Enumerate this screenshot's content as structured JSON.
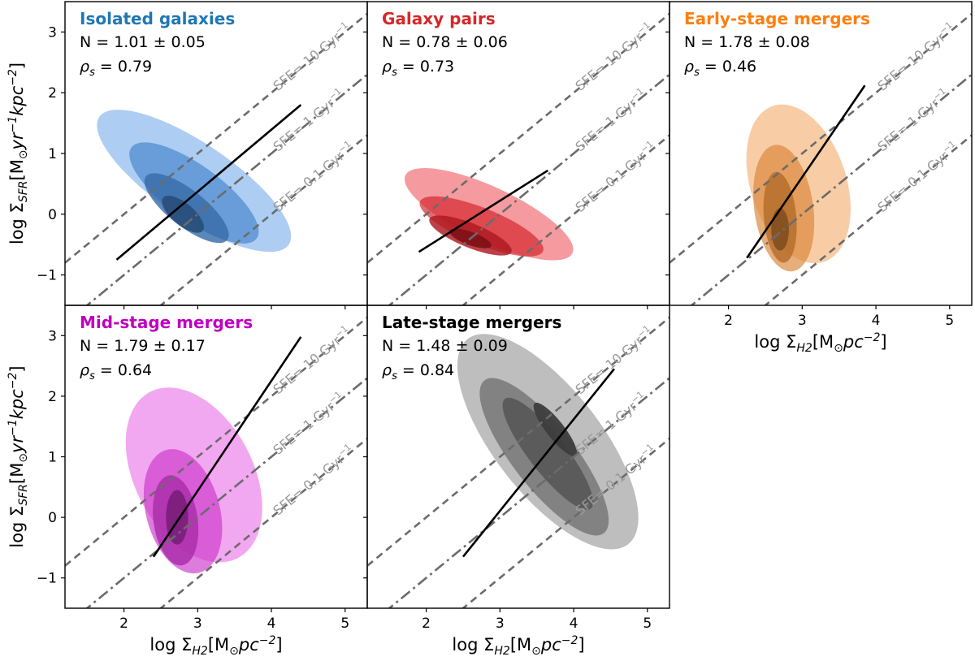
{
  "figure": {
    "xlabel_main": "log Σ",
    "xlabel_sub": "H2",
    "xlabel_unit": "[M",
    "xlabel_unit_sub": "⊙",
    "xlabel_unit_tail": "pc",
    "xlabel_unit_sup": "−2",
    "xlabel_close": "]",
    "ylabel_main": "log Σ",
    "ylabel_sub": "SFR",
    "ylabel_unit": "[M",
    "ylabel_unit_sub": "⊙",
    "ylabel_yr": "yr",
    "ylabel_yr_sup": "−1",
    "ylabel_kpc": "kpc",
    "ylabel_kpc_sup": "−2",
    "ylabel_close": "]",
    "sfe_labels": [
      "SFE= 10 Gyr",
      "SFE= 1 Gyr",
      "SFE= 0.1 Gyr"
    ],
    "sfe_sup": "−1",
    "stats_n_prefix": "N = ",
    "stats_rho_symbol": "ρ",
    "stats_rho_sub": "s",
    "stats_rho_eq": " = "
  },
  "chart_data": [
    {
      "type": "contour",
      "title": "Isolated galaxies",
      "title_color": "#1f77b4",
      "fill_color": "#4a90e2",
      "n_label": "1.01 ± 0.05",
      "rho_label": "0.79",
      "xlim": [
        1.2,
        5.3
      ],
      "ylim": [
        -1.5,
        3.5
      ],
      "xticks": [
        2,
        3,
        4,
        5
      ],
      "yticks": [
        -1,
        0,
        1,
        2,
        3
      ],
      "fit_line": [
        [
          1.9,
          -0.75
        ],
        [
          4.4,
          1.8
        ]
      ],
      "sfe_reference_lines": {
        "sfe_10": [
          [
            1.2,
            -0.8
          ],
          [
            5.3,
            3.3
          ]
        ],
        "sfe_1": [
          [
            1.2,
            -1.8
          ],
          [
            5.3,
            2.3
          ]
        ],
        "sfe_0_1": [
          [
            1.2,
            -2.8
          ],
          [
            5.3,
            1.3
          ]
        ]
      }
    },
    {
      "type": "contour",
      "title": "Galaxy pairs",
      "title_color": "#d62728",
      "fill_color": "#e8212a",
      "n_label": "0.78 ± 0.06",
      "rho_label": "0.73",
      "xlim": [
        1.2,
        5.3
      ],
      "ylim": [
        -1.5,
        3.5
      ],
      "xticks": [
        2,
        3,
        4,
        5
      ],
      "yticks": [
        -1,
        0,
        1,
        2,
        3
      ],
      "fit_line": [
        [
          1.9,
          -0.62
        ],
        [
          3.65,
          0.72
        ]
      ],
      "sfe_reference_lines": {
        "sfe_10": [
          [
            1.2,
            -0.8
          ],
          [
            5.3,
            3.3
          ]
        ],
        "sfe_1": [
          [
            1.2,
            -1.8
          ],
          [
            5.3,
            2.3
          ]
        ],
        "sfe_0_1": [
          [
            1.2,
            -2.8
          ],
          [
            5.3,
            1.3
          ]
        ]
      }
    },
    {
      "type": "contour",
      "title": "Early-stage mergers",
      "title_color": "#ff7f0e",
      "fill_color": "#f0913a",
      "n_label": "1.78 ± 0.08",
      "rho_label": "0.46",
      "xlim": [
        1.2,
        5.3
      ],
      "ylim": [
        -1.5,
        3.5
      ],
      "xticks": [
        2,
        3,
        4,
        5
      ],
      "yticks": [
        -1,
        0,
        1,
        2,
        3
      ],
      "fit_line": [
        [
          2.25,
          -0.72
        ],
        [
          3.85,
          2.12
        ]
      ],
      "sfe_reference_lines": {
        "sfe_10": [
          [
            1.2,
            -0.8
          ],
          [
            5.3,
            3.3
          ]
        ],
        "sfe_1": [
          [
            1.2,
            -1.8
          ],
          [
            5.3,
            2.3
          ]
        ],
        "sfe_0_1": [
          [
            1.2,
            -2.8
          ],
          [
            5.3,
            1.3
          ]
        ]
      }
    },
    {
      "type": "contour",
      "title": "Mid-stage mergers",
      "title_color": "#c000c0",
      "fill_color": "#e23be0",
      "n_label": "1.79 ± 0.17",
      "rho_label": "0.64",
      "xlim": [
        1.2,
        5.3
      ],
      "ylim": [
        -1.5,
        3.5
      ],
      "xticks": [
        2,
        3,
        4,
        5
      ],
      "yticks": [
        -1,
        0,
        1,
        2,
        3
      ],
      "fit_line": [
        [
          2.4,
          -0.65
        ],
        [
          4.4,
          2.98
        ]
      ],
      "sfe_reference_lines": {
        "sfe_10": [
          [
            1.2,
            -0.8
          ],
          [
            5.3,
            3.3
          ]
        ],
        "sfe_1": [
          [
            1.2,
            -1.8
          ],
          [
            5.3,
            2.3
          ]
        ],
        "sfe_0_1": [
          [
            1.2,
            -2.8
          ],
          [
            5.3,
            1.3
          ]
        ]
      }
    },
    {
      "type": "contour",
      "title": "Late-stage mergers",
      "title_color": "#000000",
      "fill_color": "#6e6e6e",
      "n_label": "1.48 ± 0.09",
      "rho_label": "0.84",
      "xlim": [
        1.2,
        5.3
      ],
      "ylim": [
        -1.5,
        3.5
      ],
      "xticks": [
        2,
        3,
        4,
        5
      ],
      "yticks": [
        -1,
        0,
        1,
        2,
        3
      ],
      "fit_line": [
        [
          2.5,
          -0.65
        ],
        [
          4.55,
          2.45
        ]
      ],
      "sfe_reference_lines": {
        "sfe_10": [
          [
            1.2,
            -0.8
          ],
          [
            5.3,
            3.3
          ]
        ],
        "sfe_1": [
          [
            1.2,
            -1.8
          ],
          [
            5.3,
            2.3
          ]
        ],
        "sfe_0_1": [
          [
            1.2,
            -2.8
          ],
          [
            5.3,
            1.3
          ]
        ]
      }
    }
  ]
}
